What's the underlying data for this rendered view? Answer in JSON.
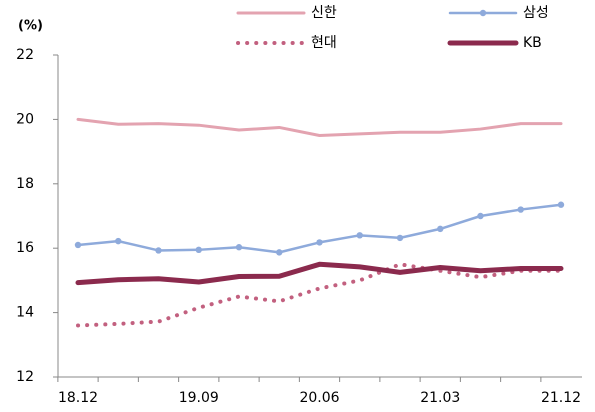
{
  "chart_data": {
    "type": "line",
    "y_label": "(%)",
    "categories": [
      "18.12",
      null,
      null,
      "19.09",
      null,
      null,
      "20.06",
      null,
      null,
      "21.03",
      null,
      null,
      "21.12"
    ],
    "ylim": [
      12,
      22
    ],
    "yticks": [
      12,
      14,
      16,
      18,
      20,
      22
    ],
    "series": [
      {
        "name": "신한",
        "color": "#e3a3b0",
        "values": [
          20.0,
          19.85,
          19.87,
          19.82,
          19.67,
          19.75,
          19.5,
          19.55,
          19.6,
          19.6,
          19.7,
          19.87,
          19.87
        ]
      },
      {
        "name": "삼성",
        "color": "#8eaadb",
        "values": [
          16.1,
          16.22,
          15.93,
          15.95,
          16.03,
          15.87,
          16.18,
          16.4,
          16.32,
          16.6,
          17.0,
          17.2,
          17.35
        ]
      },
      {
        "name": "현대",
        "color": "#c2607f",
        "values": [
          13.6,
          13.65,
          13.72,
          14.15,
          14.5,
          14.35,
          14.75,
          15.0,
          15.5,
          15.3,
          15.1,
          15.3,
          15.3
        ]
      },
      {
        "name": "KB",
        "color": "#8b2a4d",
        "values": [
          14.93,
          15.02,
          15.05,
          14.95,
          15.12,
          15.13,
          15.5,
          15.42,
          15.25,
          15.4,
          15.3,
          15.37,
          15.37
        ]
      }
    ]
  }
}
